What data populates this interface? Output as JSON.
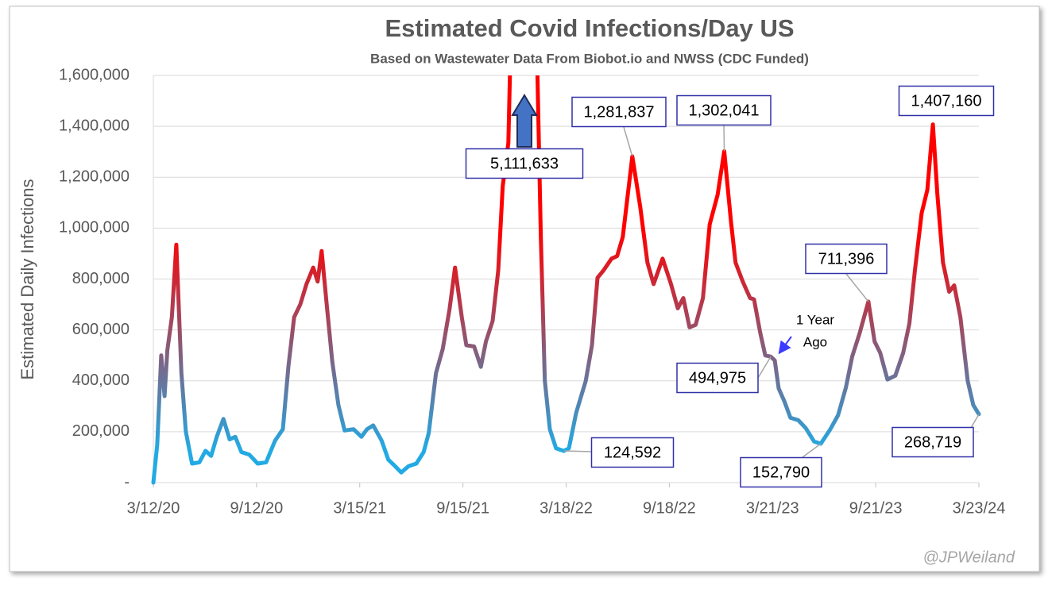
{
  "chart_data": {
    "type": "line",
    "title": "Estimated Covid Infections/Day US",
    "subtitle": "Based on Wastewater Data From Biobot.io and NWSS (CDC Funded)",
    "y_label": "Estimated Daily Infections",
    "colors": [
      "#22aae3",
      "#ff0000"
    ],
    "grid": true,
    "xlim": [
      "3/12/20",
      "3/23/24"
    ],
    "xticks": [
      "3/12/20",
      "9/12/20",
      "3/15/21",
      "9/15/21",
      "3/18/22",
      "9/18/22",
      "3/21/23",
      "9/21/23",
      "3/23/24"
    ],
    "ylim": [
      0,
      1600000
    ],
    "yticks": [
      {
        "value": 0,
        "label": "-"
      },
      {
        "value": 200000,
        "label": "200,000"
      },
      {
        "value": 400000,
        "label": "400,000"
      },
      {
        "value": 600000,
        "label": "600,000"
      },
      {
        "value": 800000,
        "label": "800,000"
      },
      {
        "value": 1000000,
        "label": "1,000,000"
      },
      {
        "value": 1200000,
        "label": "1,200,000"
      },
      {
        "value": 1400000,
        "label": "1,400,000"
      },
      {
        "value": 1600000,
        "label": "1,600,000"
      }
    ],
    "x": [
      "3/12/20",
      "3/19/20",
      "3/26/20",
      "4/1/20",
      "4/6/20",
      "4/14/20",
      "4/22/20",
      "5/1/20",
      "5/9/20",
      "5/20/20",
      "6/2/20",
      "6/13/20",
      "6/23/20",
      "7/3/20",
      "7/15/20",
      "7/26/20",
      "8/5/20",
      "8/16/20",
      "8/30/20",
      "9/14/20",
      "9/29/20",
      "10/15/20",
      "10/29/20",
      "11/8/20",
      "11/18/20",
      "11/29/20",
      "12/10/20",
      "12/22/20",
      "12/30/20",
      "1/6/21",
      "1/16/21",
      "1/25/21",
      "2/5/21",
      "2/16/21",
      "3/4/21",
      "3/18/21",
      "3/28/21",
      "4/8/21",
      "4/23/21",
      "5/5/21",
      "5/17/21",
      "5/28/21",
      "6/10/21",
      "6/24/21",
      "7/7/21",
      "7/16/21",
      "7/29/21",
      "8/10/21",
      "8/22/21",
      "9/1/21",
      "9/13/21",
      "9/21/21",
      "10/5/21",
      "10/17/21",
      "10/26/21",
      "11/7/21",
      "11/17/21",
      "11/25/21",
      "12/5/21",
      "12/12/21",
      "1/10/22",
      "1/24/22",
      "2/1/22",
      "2/8/22",
      "2/17/22",
      "2/28/22",
      "3/14/22",
      "3/23/22",
      "4/5/22",
      "4/22/22",
      "5/3/22",
      "5/13/22",
      "5/24/22",
      "6/7/22",
      "6/17/22",
      "6/27/22",
      "7/14/22",
      "7/28/22",
      "8/10/22",
      "8/21/22",
      "9/6/22",
      "9/21/22",
      "10/3/22",
      "10/13/22",
      "10/24/22",
      "11/4/22",
      "11/17/22",
      "11/29/22",
      "12/13/22",
      "12/25/22",
      "1/6/23",
      "1/14/23",
      "1/27/23",
      "2/9/23",
      "2/16/23",
      "2/27/23",
      "3/8/23",
      "3/18/23",
      "3/25/23",
      "4/1/23",
      "4/11/23",
      "4/22/23",
      "5/6/23",
      "5/19/23",
      "6/3/23",
      "6/15/23",
      "7/2/23",
      "7/16/23",
      "7/30/23",
      "8/10/23",
      "8/23/23",
      "9/8/23",
      "9/19/23",
      "9/29/23",
      "10/12/23",
      "10/26/23",
      "11/9/23",
      "11/20/23",
      "11/30/23",
      "12/12/23",
      "12/22/23",
      "1/1/24",
      "1/9/24",
      "1/19/24",
      "1/30/24",
      "2/8/24",
      "2/19/24",
      "3/3/24",
      "3/13/24",
      "3/23/24"
    ],
    "values": [
      0,
      150000,
      500000,
      340000,
      520000,
      650000,
      935000,
      430000,
      200000,
      75000,
      80000,
      125000,
      105000,
      180000,
      250000,
      170000,
      180000,
      120000,
      110000,
      75000,
      80000,
      165000,
      210000,
      460000,
      650000,
      700000,
      780000,
      845000,
      790000,
      910000,
      680000,
      475000,
      305000,
      205000,
      210000,
      180000,
      210000,
      225000,
      165000,
      90000,
      65000,
      40000,
      65000,
      75000,
      120000,
      195000,
      430000,
      525000,
      680000,
      845000,
      650000,
      540000,
      535000,
      455000,
      555000,
      635000,
      835000,
      1165000,
      1335000,
      2000000,
      5111633,
      1800000,
      960000,
      400000,
      210000,
      135000,
      124592,
      135000,
      275000,
      400000,
      540000,
      805000,
      835000,
      880000,
      890000,
      965000,
      1281837,
      1085000,
      865000,
      780000,
      880000,
      780000,
      685000,
      725000,
      610000,
      620000,
      725000,
      1015000,
      1130000,
      1302041,
      1025000,
      865000,
      790000,
      725000,
      720000,
      590000,
      500000,
      494975,
      480000,
      370000,
      320000,
      255000,
      245000,
      215000,
      162000,
      152790,
      210000,
      265000,
      375000,
      495000,
      585000,
      711396,
      555000,
      510000,
      405000,
      420000,
      510000,
      625000,
      835000,
      1060000,
      1150000,
      1407160,
      1130000,
      865000,
      750000,
      775000,
      650000,
      400000,
      305000,
      268719
    ],
    "value_labels": [
      null,
      null,
      null,
      null,
      null,
      null,
      null,
      null,
      null,
      null,
      null,
      null,
      null,
      null,
      null,
      null,
      null,
      null,
      null,
      null,
      null,
      null,
      null,
      null,
      null,
      null,
      null,
      null,
      null,
      null,
      null,
      null,
      null,
      null,
      null,
      null,
      null,
      null,
      null,
      null,
      null,
      null,
      null,
      null,
      null,
      null,
      null,
      null,
      null,
      null,
      null,
      null,
      null,
      null,
      null,
      null,
      null,
      null,
      null,
      null,
      "5,111,633",
      null,
      null,
      null,
      null,
      null,
      "124,592",
      null,
      null,
      null,
      null,
      null,
      null,
      null,
      null,
      null,
      "1,281,837",
      null,
      null,
      null,
      null,
      null,
      null,
      null,
      null,
      null,
      null,
      null,
      null,
      "1,302,041",
      null,
      null,
      null,
      null,
      null,
      null,
      null,
      "494,975",
      null,
      null,
      null,
      null,
      null,
      null,
      null,
      "152,790",
      null,
      null,
      null,
      null,
      null,
      "711,396",
      null,
      null,
      null,
      null,
      null,
      null,
      null,
      null,
      null,
      "1,407,160",
      null,
      null,
      null,
      null,
      null,
      null,
      null,
      "268,719"
    ],
    "annotation": [
      "1 Year",
      "Ago"
    ],
    "credit": "@JPWeiland"
  }
}
